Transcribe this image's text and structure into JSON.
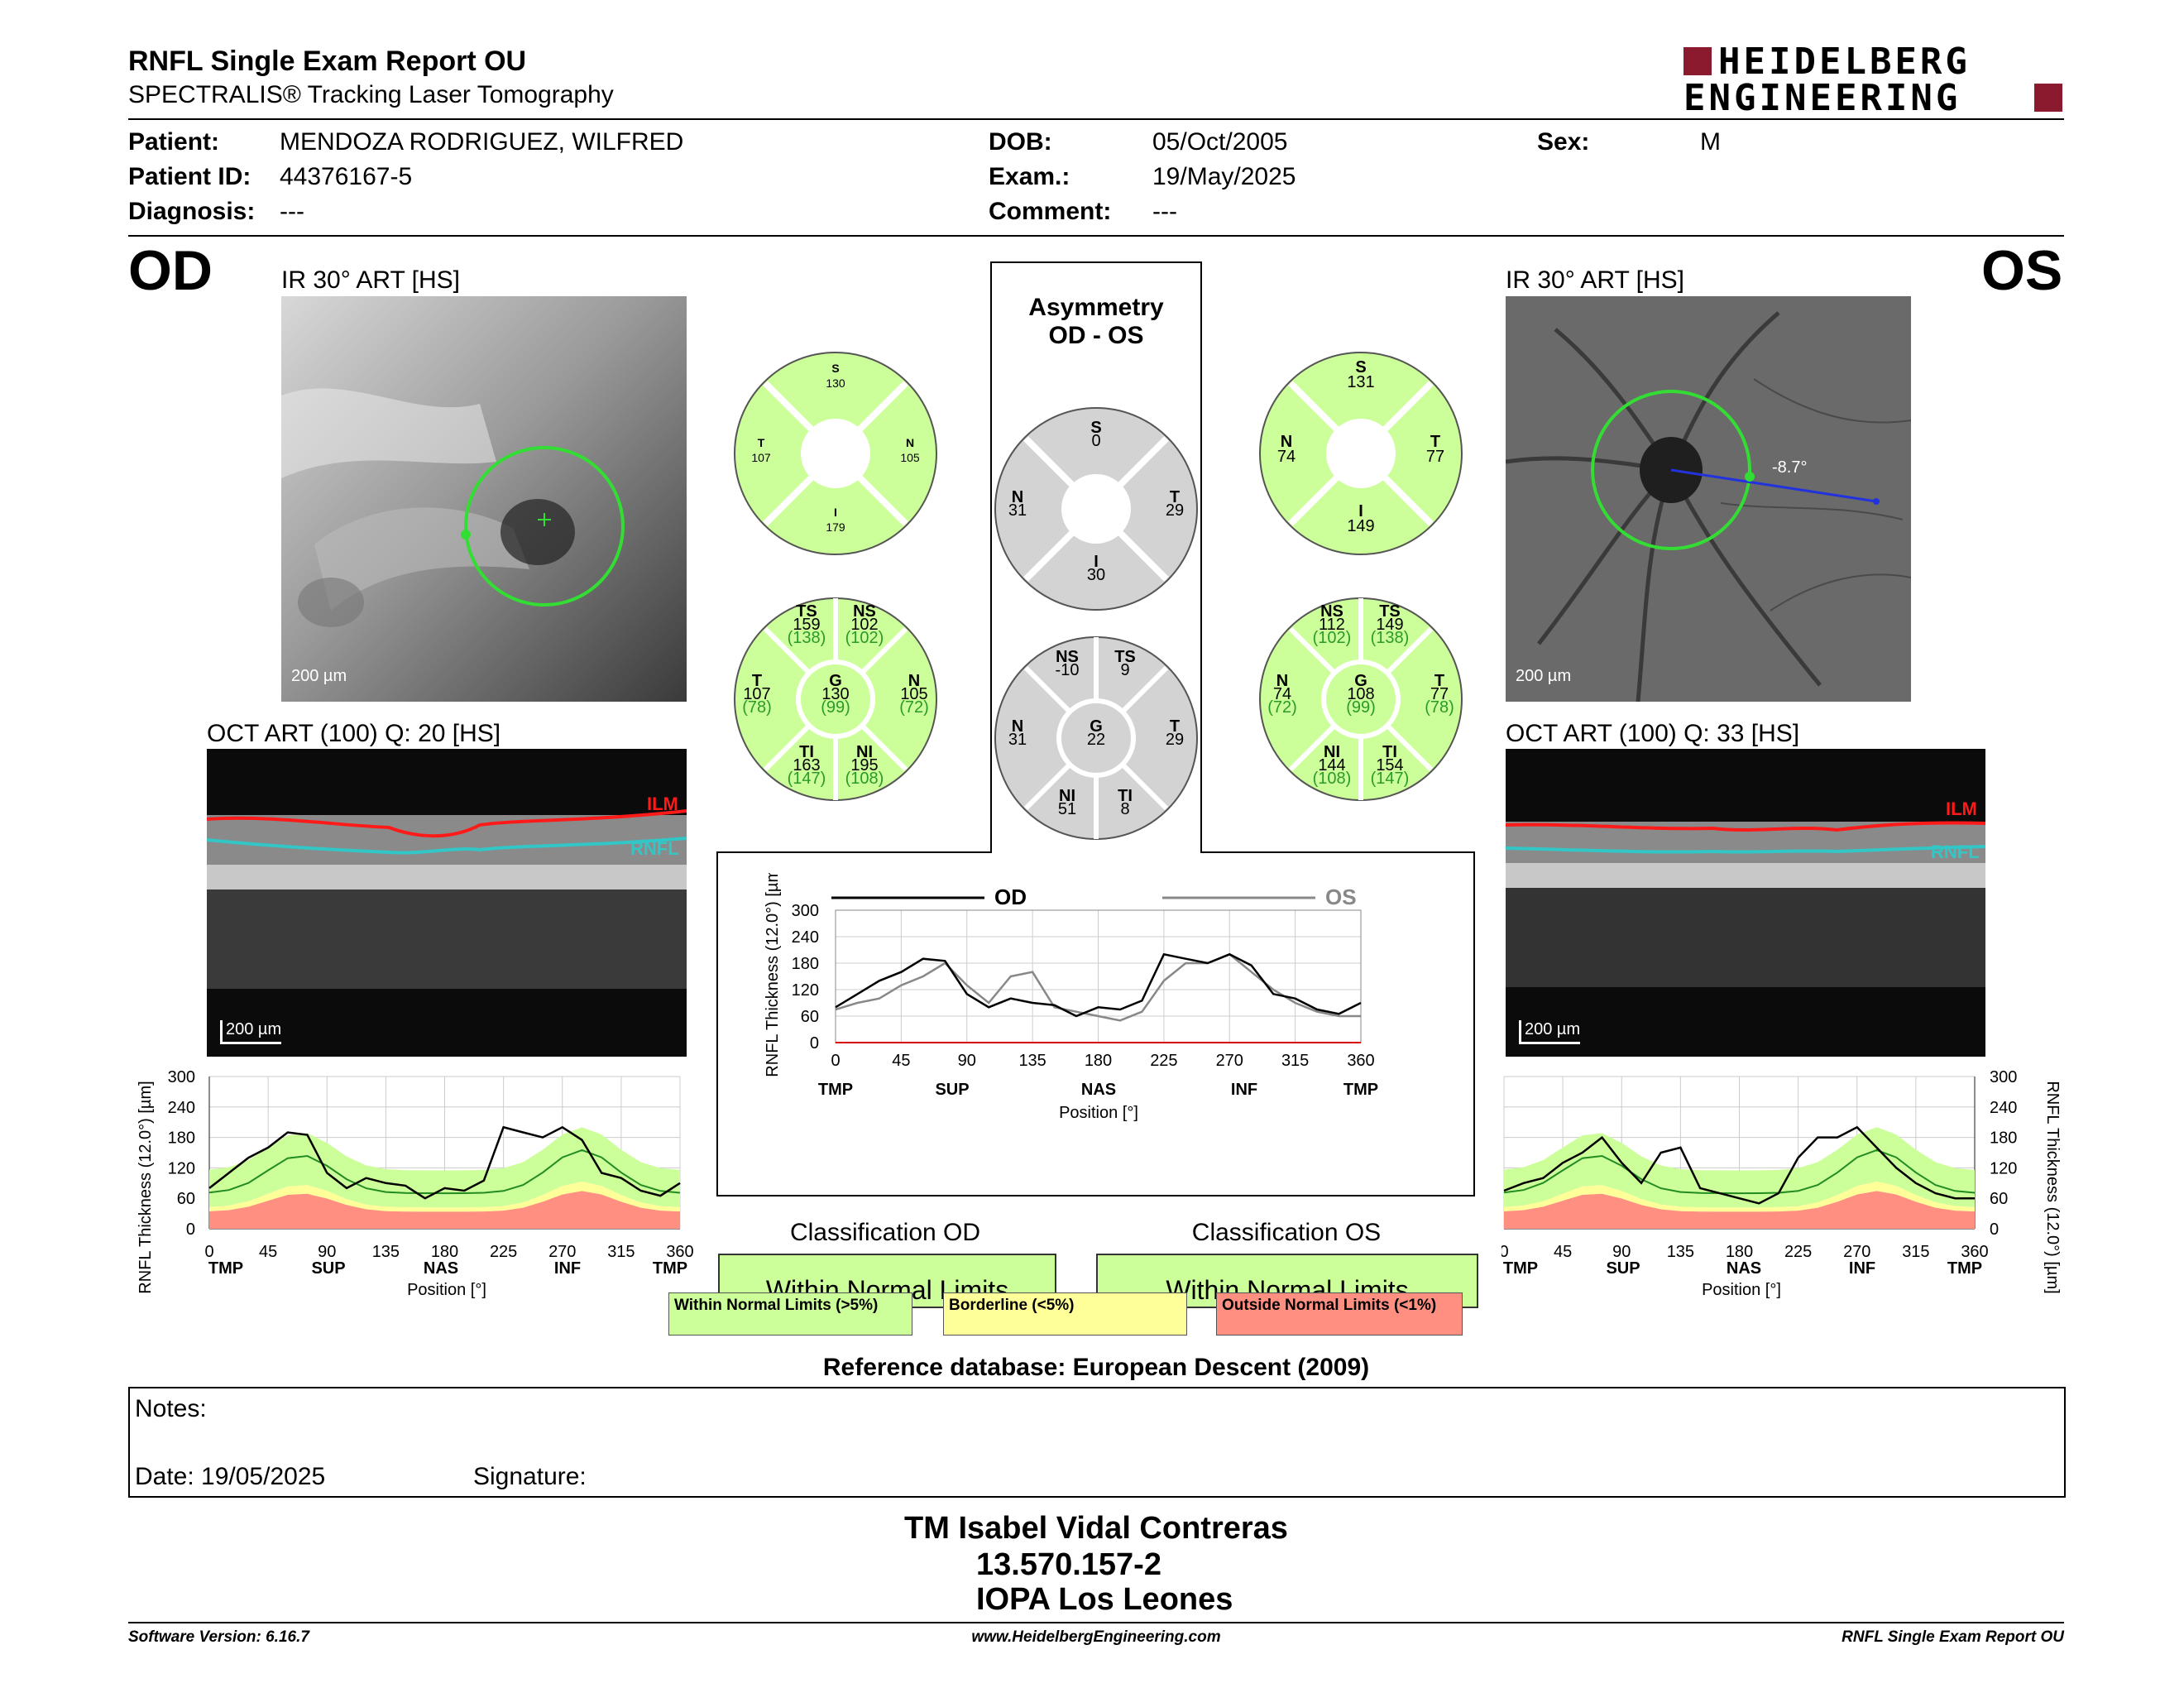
{
  "header": {
    "title": "RNFL Single Exam Report OU",
    "subtitle": "SPECTRALIS® Tracking Laser Tomography",
    "logo_line1": "HEIDELBERG",
    "logo_line2": "ENGINEERING"
  },
  "patient": {
    "patient_label": "Patient:",
    "patient_value": "MENDOZA RODRIGUEZ, WILFRED",
    "id_label": "Patient ID:",
    "id_value": "44376167-5",
    "diagnosis_label": "Diagnosis:",
    "diagnosis_value": "---",
    "dob_label": "DOB:",
    "dob_value": "05/Oct/2005",
    "exam_label": "Exam.:",
    "exam_value": "19/May/2025",
    "comment_label": "Comment:",
    "comment_value": "---",
    "sex_label": "Sex:",
    "sex_value": "M"
  },
  "od": {
    "eye": "OD",
    "ir_title": "IR 30° ART [HS]",
    "ir_scale": "200 µm",
    "oct_title": "OCT ART (100) Q: 20 [HS]",
    "oct_scale": "200 µm",
    "ilm": "ILM",
    "rnfl": "RNFL",
    "circle4": {
      "S": {
        "l": "S",
        "v": "130"
      },
      "T": {
        "l": "T",
        "v": "107"
      },
      "N": {
        "l": "N",
        "v": "105"
      },
      "I": {
        "l": "I",
        "v": "179"
      }
    },
    "circle6": {
      "TS": {
        "l": "TS",
        "v": "159",
        "r": "(138)"
      },
      "NS": {
        "l": "NS",
        "v": "102",
        "r": "(102)"
      },
      "T": {
        "l": "T",
        "v": "107",
        "r": "(78)"
      },
      "G": {
        "l": "G",
        "v": "130",
        "r": "(99)"
      },
      "N": {
        "l": "N",
        "v": "105",
        "r": "(72)"
      },
      "TI": {
        "l": "TI",
        "v": "163",
        "r": "(147)"
      },
      "NI": {
        "l": "NI",
        "v": "195",
        "r": "(108)"
      }
    },
    "classification_title": "Classification OD",
    "classification": "Within Normal Limits"
  },
  "os": {
    "eye": "OS",
    "ir_title": "IR 30° ART [HS]",
    "ir_scale": "200 µm",
    "angle": "-8.7°",
    "oct_title": "OCT ART (100) Q: 33 [HS]",
    "oct_scale": "200 µm",
    "ilm": "ILM",
    "rnfl": "RNFL",
    "circle4": {
      "S": {
        "l": "S",
        "v": "131"
      },
      "N": {
        "l": "N",
        "v": "74"
      },
      "T": {
        "l": "T",
        "v": "77"
      },
      "I": {
        "l": "I",
        "v": "149"
      }
    },
    "circle6": {
      "NS": {
        "l": "NS",
        "v": "112",
        "r": "(102)"
      },
      "TS": {
        "l": "TS",
        "v": "149",
        "r": "(138)"
      },
      "N": {
        "l": "N",
        "v": "74",
        "r": "(72)"
      },
      "G": {
        "l": "G",
        "v": "108",
        "r": "(99)"
      },
      "T": {
        "l": "T",
        "v": "77",
        "r": "(78)"
      },
      "NI": {
        "l": "NI",
        "v": "144",
        "r": "(108)"
      },
      "TI": {
        "l": "TI",
        "v": "154",
        "r": "(147)"
      }
    },
    "classification_title": "Classification OS",
    "classification": "Within Normal Limits"
  },
  "asymmetry": {
    "title1": "Asymmetry",
    "title2": "OD - OS",
    "circle4": {
      "S": {
        "l": "S",
        "v": "0"
      },
      "N": {
        "l": "N",
        "v": "31"
      },
      "T": {
        "l": "T",
        "v": "29"
      },
      "I": {
        "l": "I",
        "v": "30"
      }
    },
    "circle6": {
      "NS": {
        "l": "NS",
        "v": "-10"
      },
      "TS": {
        "l": "TS",
        "v": "9"
      },
      "N": {
        "l": "N",
        "v": "31"
      },
      "G": {
        "l": "G",
        "v": "22"
      },
      "T": {
        "l": "T",
        "v": "29"
      },
      "NI": {
        "l": "NI",
        "v": "51"
      },
      "TI": {
        "l": "TI",
        "v": "8"
      }
    },
    "legend_od": "OD",
    "legend_os": "OS"
  },
  "axes": {
    "ylabel": "RNFL Thickness (12.0°) [µm]",
    "xlabel": "Position [°]",
    "yticks": [
      "300",
      "240",
      "180",
      "120",
      "60",
      "0"
    ],
    "yticks_mid": [
      "300",
      "240",
      "180",
      "120",
      "60",
      "0"
    ],
    "xticks": [
      "0",
      "45",
      "90",
      "135",
      "180",
      "225",
      "270",
      "315",
      "360"
    ],
    "sectors_od": [
      "TMP",
      "SUP",
      "NAS",
      "INF",
      "TMP"
    ],
    "sectors_os": [
      "TMP",
      "SUP",
      "NAS",
      "INF",
      "TMP"
    ]
  },
  "legend": {
    "wnl": "Within Normal Limits (>5%)",
    "bl": "Borderline (<5%)",
    "onl": "Outside Normal Limits (<1%)"
  },
  "reference": "Reference database: European Descent (2009)",
  "notes": {
    "notes_label": "Notes:",
    "date_label": "Date: 19/05/2025",
    "signature_label": "Signature:"
  },
  "signature": {
    "name": "TM Isabel Vidal Contreras",
    "rut": "13.570.157-2",
    "place": "IOPA Los Leones"
  },
  "footer": {
    "software": "Software Version: 6.16.7",
    "url": "www.HeidelbergEngineering.com",
    "report": "RNFL Single Exam Report OU"
  },
  "colors": {
    "green_sector": "#ccff99",
    "gray_sector": "#d3d3d3",
    "wnl": "#ccff99",
    "bl": "#ffff99",
    "onl": "#ff8f80",
    "ring": "#33dd33",
    "ilm": "#ff1a1a",
    "rnfl": "#33c6c6"
  },
  "chart_data": [
    {
      "type": "line",
      "name_ref": "asymmetry-profile",
      "x": [
        0,
        15,
        30,
        45,
        60,
        75,
        90,
        105,
        120,
        135,
        150,
        165,
        180,
        195,
        210,
        225,
        240,
        255,
        270,
        285,
        300,
        315,
        330,
        345,
        360
      ],
      "series": [
        {
          "name": "OD",
          "values": [
            80,
            110,
            140,
            160,
            190,
            185,
            110,
            80,
            100,
            90,
            85,
            60,
            80,
            75,
            95,
            200,
            190,
            180,
            200,
            175,
            110,
            100,
            75,
            65,
            90
          ]
        },
        {
          "name": "OS",
          "values": [
            75,
            90,
            100,
            130,
            150,
            180,
            130,
            90,
            150,
            160,
            80,
            70,
            60,
            50,
            70,
            140,
            180,
            180,
            200,
            160,
            120,
            90,
            70,
            60,
            60
          ]
        }
      ],
      "xlabel": "Position [°]",
      "ylabel": "RNFL Thickness (12.0°) [µm]",
      "xlim": [
        0,
        360
      ],
      "ylim": [
        0,
        300
      ]
    },
    {
      "type": "line",
      "name_ref": "od-profile",
      "x": [
        0,
        15,
        30,
        45,
        60,
        75,
        90,
        105,
        120,
        135,
        150,
        165,
        180,
        195,
        210,
        225,
        240,
        255,
        270,
        285,
        300,
        315,
        330,
        345,
        360
      ],
      "series": [
        {
          "name": "OD",
          "values": [
            80,
            110,
            140,
            160,
            190,
            185,
            110,
            80,
            100,
            90,
            85,
            60,
            80,
            75,
            95,
            200,
            190,
            180,
            200,
            175,
            110,
            100,
            75,
            65,
            90
          ]
        }
      ],
      "xlim": [
        0,
        360
      ],
      "ylim": [
        0,
        300
      ]
    },
    {
      "type": "line",
      "name_ref": "os-profile",
      "x": [
        0,
        15,
        30,
        45,
        60,
        75,
        90,
        105,
        120,
        135,
        150,
        165,
        180,
        195,
        210,
        225,
        240,
        255,
        270,
        285,
        300,
        315,
        330,
        345,
        360
      ],
      "series": [
        {
          "name": "OS",
          "values": [
            75,
            90,
            100,
            130,
            150,
            180,
            130,
            90,
            150,
            160,
            80,
            70,
            60,
            50,
            70,
            140,
            180,
            180,
            200,
            160,
            120,
            90,
            70,
            60,
            60
          ]
        }
      ],
      "xlim": [
        0,
        360
      ],
      "ylim": [
        0,
        300
      ]
    }
  ]
}
